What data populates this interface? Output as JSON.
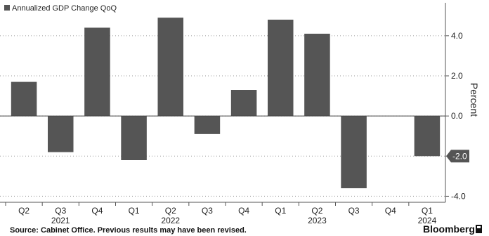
{
  "chart_data": {
    "type": "bar",
    "legend": {
      "label": "Annualized GDP Change QoQ",
      "placement": "top-left",
      "color": "#555555"
    },
    "categories": [
      "Q2",
      "Q3",
      "Q4",
      "Q1",
      "Q2",
      "Q3",
      "Q4",
      "Q1",
      "Q2",
      "Q3",
      "Q4",
      "Q1"
    ],
    "years": [
      {
        "label": "2021",
        "under": 1
      },
      {
        "label": "2022",
        "under": 4
      },
      {
        "label": "2023",
        "under": 8
      },
      {
        "label": "2024",
        "under": 11
      }
    ],
    "series": [
      {
        "name": "Annualized GDP Change QoQ",
        "values": [
          1.7,
          -1.8,
          4.4,
          -2.2,
          4.9,
          -0.9,
          1.3,
          4.8,
          4.1,
          -3.6,
          null,
          -2.0
        ]
      }
    ],
    "ylabel": "Percent",
    "ylim": [
      -4.3,
      5.5
    ],
    "yticks": [
      4.0,
      2.0,
      0.0,
      -2.0,
      -4.0
    ],
    "ytick_labels": [
      "4.0",
      "2.0",
      "0.0",
      "-2.0",
      "-4.0"
    ],
    "last_value_label": "-2.0",
    "y_axis_position": "right",
    "grid": "dotted horizontal",
    "bar_color": "#555555"
  },
  "footer": {
    "source": "Source: Cabinet Office. Previous results may have been revised.",
    "brand": "Bloomberg"
  }
}
